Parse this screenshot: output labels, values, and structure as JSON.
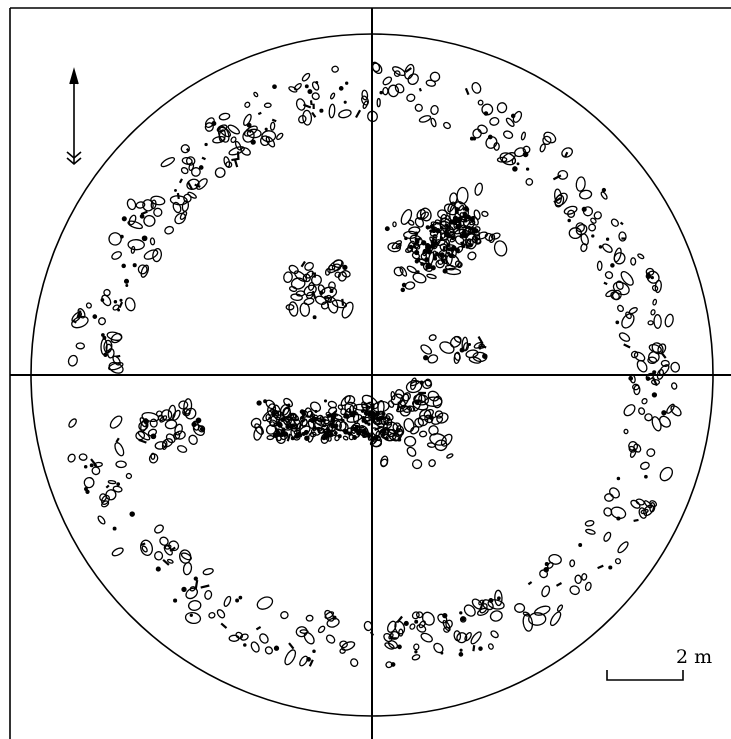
{
  "scale_bar": {
    "label": "2 m"
  },
  "north_arrow": {
    "icon": "north-arrow-icon"
  },
  "colors": {
    "ink": "#000000",
    "paper": "#ffffff"
  }
}
